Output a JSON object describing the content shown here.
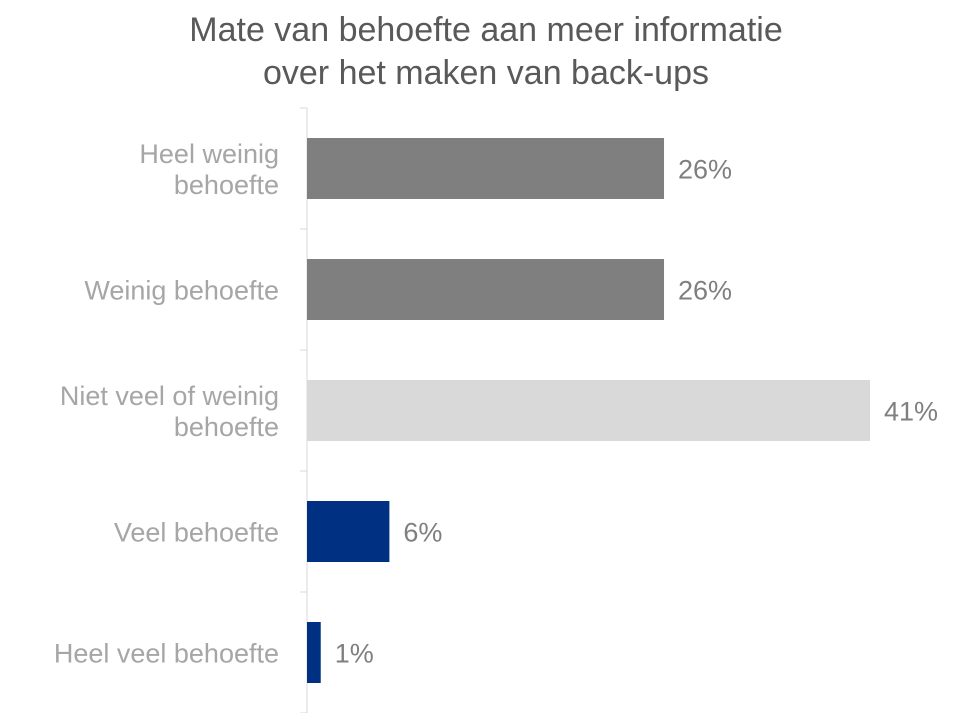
{
  "chart_data": {
    "type": "bar",
    "orientation": "horizontal",
    "title_lines": [
      "Mate van behoefte aan meer informatie",
      "over het maken van back-ups"
    ],
    "categories": [
      [
        "Heel weinig",
        "behoefte"
      ],
      [
        "Weinig behoefte"
      ],
      [
        "Niet veel of weinig",
        "behoefte"
      ],
      [
        "Veel behoefte"
      ],
      [
        "Heel veel behoefte"
      ]
    ],
    "values": [
      26,
      26,
      41,
      6,
      1
    ],
    "value_labels": [
      "26%",
      "26%",
      "41%",
      "6%",
      "1%"
    ],
    "bar_colors": [
      "#7f7f7f",
      "#7f7f7f",
      "#d9d9d9",
      "#003082",
      "#003082"
    ],
    "xlim": [
      0,
      41
    ],
    "grid": false,
    "legend": "none"
  }
}
